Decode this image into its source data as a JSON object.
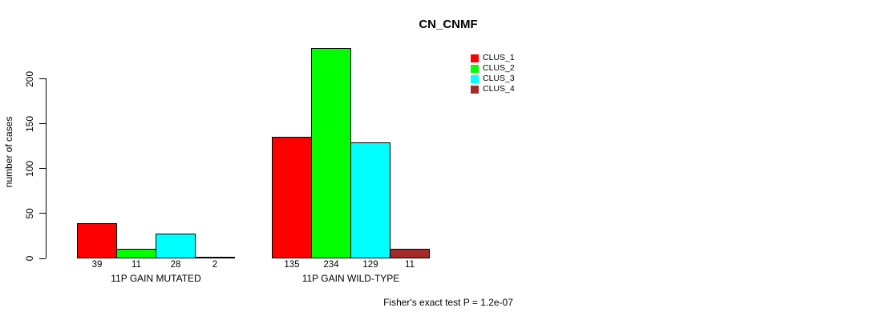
{
  "chart_data": {
    "type": "bar",
    "title": "CN_CNMF",
    "xlabel": "",
    "ylabel": "number of cases",
    "ylim": [
      0,
      236
    ],
    "yticks": [
      0,
      50,
      100,
      150,
      200
    ],
    "grid": false,
    "legend_position": "top-right",
    "categories": [
      "11P GAIN MUTATED",
      "11P GAIN WILD-TYPE"
    ],
    "series": [
      {
        "name": "CLUS_1",
        "color": "#FF0000",
        "values": [
          39,
          135
        ]
      },
      {
        "name": "CLUS_2",
        "color": "#00FF00",
        "values": [
          11,
          234
        ]
      },
      {
        "name": "CLUS_3",
        "color": "#00FFFF",
        "values": [
          28,
          129
        ]
      },
      {
        "name": "CLUS_4",
        "color": "#A52A2A",
        "values": [
          2,
          11
        ]
      }
    ],
    "bar_value_labels_shown": true,
    "annotation": "Fisher's exact test P = 1.2e-07"
  },
  "colors": {
    "axis": "#000000",
    "bar_border": "#000000",
    "background": "#FFFFFF"
  }
}
